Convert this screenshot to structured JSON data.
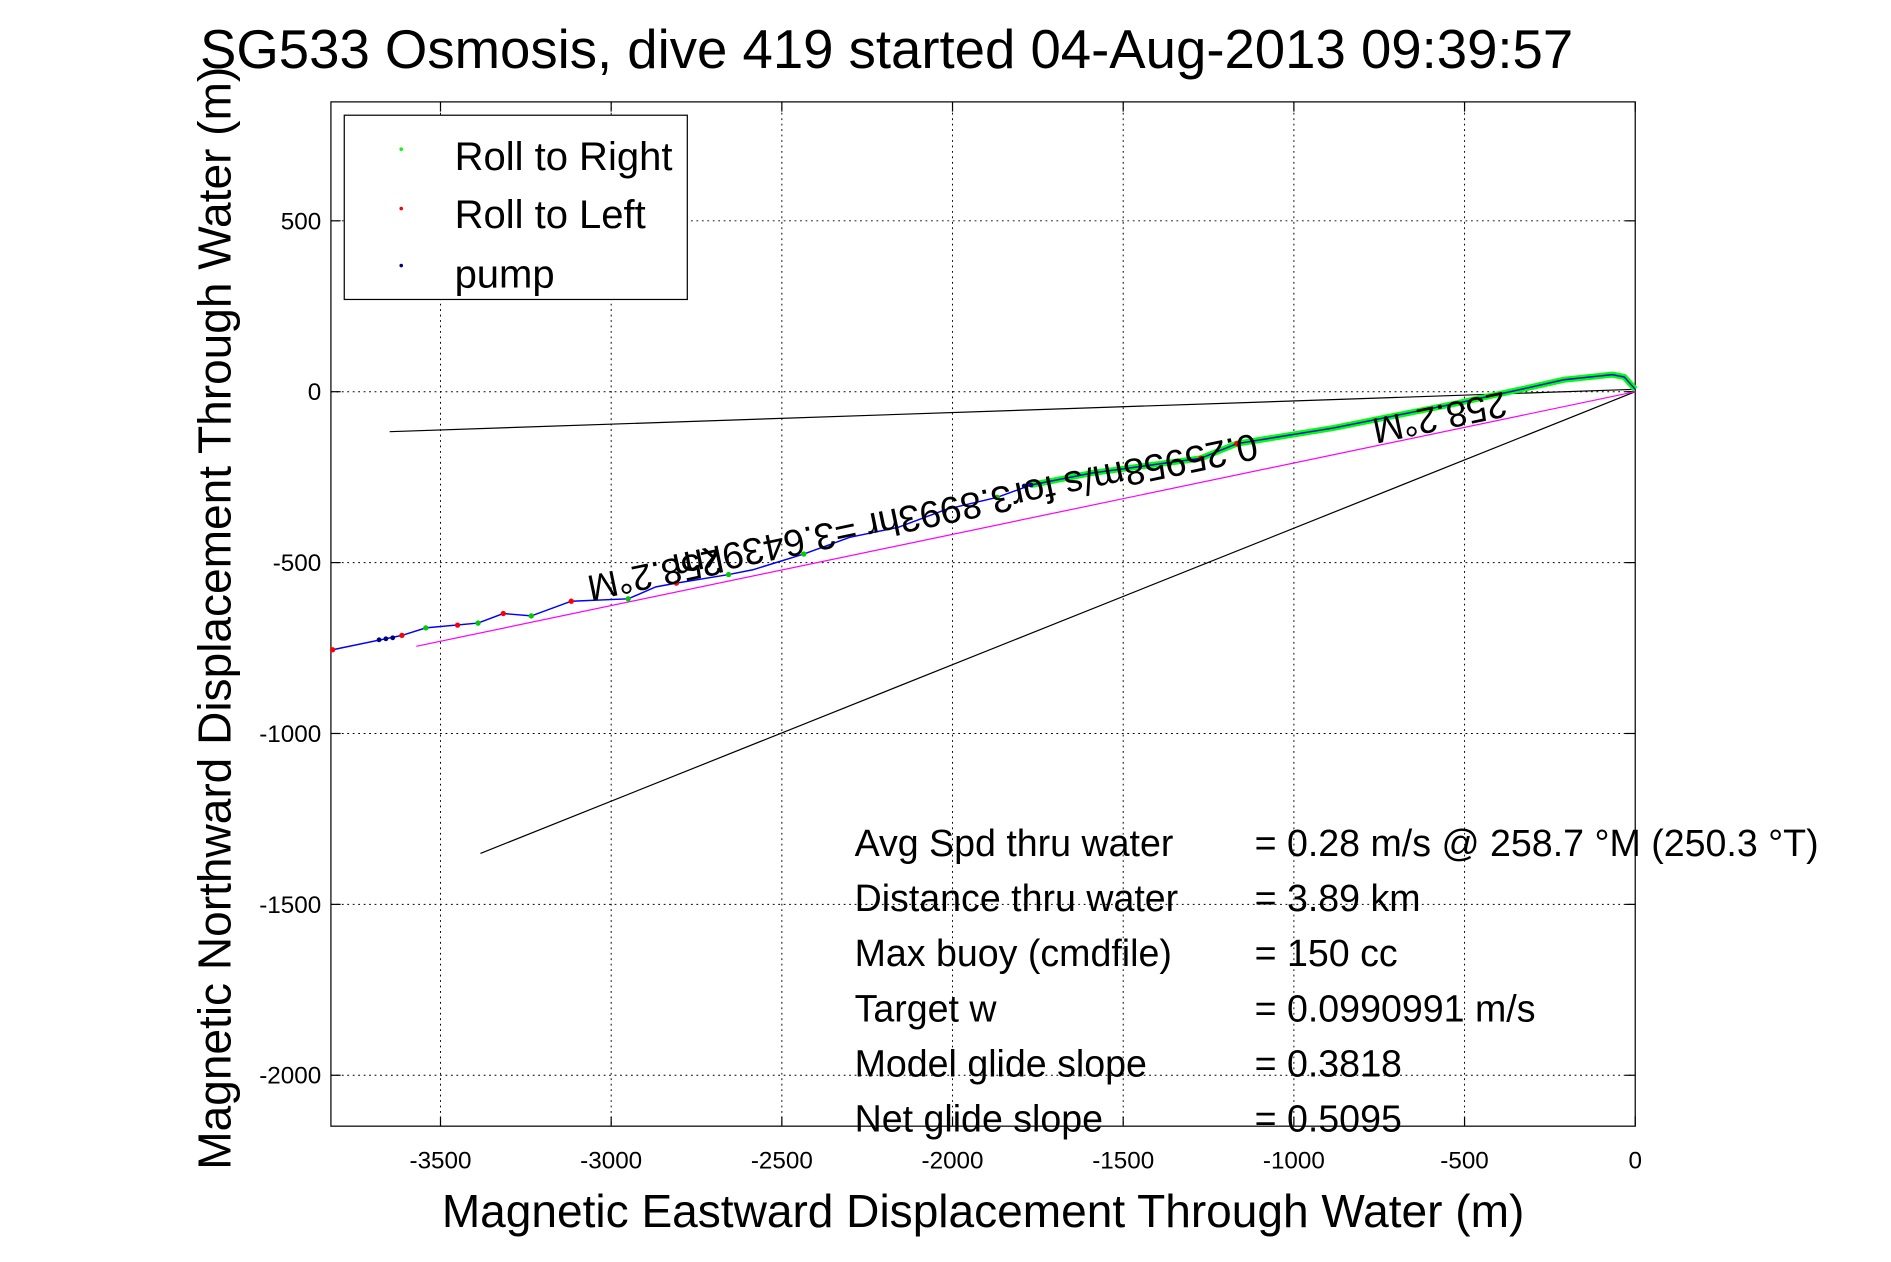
{
  "chart_data": {
    "type": "line",
    "title": "SG533 Osmosis, dive 419 started 04-Aug-2013 09:39:57",
    "xlabel": "Magnetic Eastward Displacement Through Water (m)",
    "ylabel": "Magnetic Northward Displacement Through Water (m)",
    "xlim": [
      -3821,
      0
    ],
    "ylim": [
      -2149,
      848
    ],
    "grid": true,
    "xticks": [
      -3500,
      -3000,
      -2500,
      -2000,
      -1500,
      -1000,
      -500,
      0
    ],
    "xtick_labels": [
      "-3500",
      "-3000",
      "-2500",
      "-2000",
      "-1500",
      "-1000",
      "-500",
      "0"
    ],
    "yticks": [
      500,
      0,
      -500,
      -1000,
      -1500,
      -2000
    ],
    "ytick_labels": [
      "500",
      "0",
      "-500",
      "-1000",
      "-1500",
      "-2000"
    ],
    "legend": {
      "placement": "top-left",
      "entries": [
        {
          "label": "Roll to Right",
          "color": "#00ff00"
        },
        {
          "label": "Roll to Left",
          "color": "#ff0000"
        },
        {
          "label": "pump",
          "color": "#000080"
        }
      ]
    },
    "trajectory": {
      "color": "#0000ff",
      "x": [
        0,
        -32,
        -67,
        -209,
        -316,
        -528,
        -883,
        -1167,
        -1273,
        -1592,
        -1770,
        -1869,
        -2018,
        -2160,
        -2301,
        -2436,
        -2585,
        -2656,
        -2809,
        -2869,
        -2950,
        -3117,
        -3234,
        -3316,
        -3390,
        -3543,
        -3613,
        -3816
      ],
      "y": [
        7,
        43,
        50,
        35,
        11,
        -35,
        -106,
        -152,
        -195,
        -238,
        -273,
        -309,
        -344,
        -397,
        -426,
        -475,
        -521,
        -535,
        -560,
        -571,
        -606,
        -613,
        -656,
        -649,
        -677,
        -691,
        -713,
        -755
      ]
    },
    "roll_right_segment": {
      "color": "#00ff00",
      "x_from": -1780,
      "x_to": 0
    },
    "roll_right_points": {
      "x": [
        -1869,
        -2436,
        -2656,
        -2950,
        -3234,
        -3543,
        -3390
      ],
      "y": [
        -309,
        -475,
        -535,
        -606,
        -656,
        -691,
        -677
      ]
    },
    "roll_left_points": {
      "x": [
        -1167,
        -1273,
        -2809,
        -3117,
        -3316,
        -3450,
        -3613,
        -3816
      ],
      "y": [
        -152,
        -195,
        -560,
        -613,
        -649,
        -683,
        -713,
        -755
      ]
    },
    "pump_points": {
      "x": [
        -1770,
        -1790,
        -3640,
        -3660,
        -3680
      ],
      "y": [
        -273,
        -276,
        -720,
        -723,
        -726
      ]
    },
    "lines": [
      {
        "name": "heading-line-1",
        "color": "#000000",
        "x": [
          0,
          -3649
        ],
        "y": [
          7,
          -117
        ]
      },
      {
        "name": "heading-line-2",
        "color": "#000000",
        "x": [
          0,
          -3383
        ],
        "y": [
          0,
          -1351
        ]
      },
      {
        "name": "net-displacement-line",
        "color": "#ff00ff",
        "x": [
          0,
          -3571
        ],
        "y": [
          0,
          -745
        ]
      }
    ],
    "annotations": [
      {
        "text": "258.2°M",
        "x": -580,
        "y": -40
      },
      {
        "text": "258.2°M",
        "x": -2880,
        "y": -500
      },
      {
        "text": "0.25958m/s for3.8993hr =3.6439km",
        "x": -1970,
        "y": -300
      }
    ],
    "stats": [
      {
        "label": "Avg Spd thru water",
        "value": "=  0.28 m/s @ 258.7 °M (250.3 °T)"
      },
      {
        "label": "Distance thru water",
        "value": "=  3.89 km"
      },
      {
        "label": "Max buoy (cmdfile)",
        "value": "= 150 cc"
      },
      {
        "label": "Target w",
        "value": "= 0.0990991 m/s"
      },
      {
        "label": "Model glide slope",
        "value": "= 0.3818"
      },
      {
        "label": "Net glide slope",
        "value": "= 0.5095"
      }
    ]
  }
}
